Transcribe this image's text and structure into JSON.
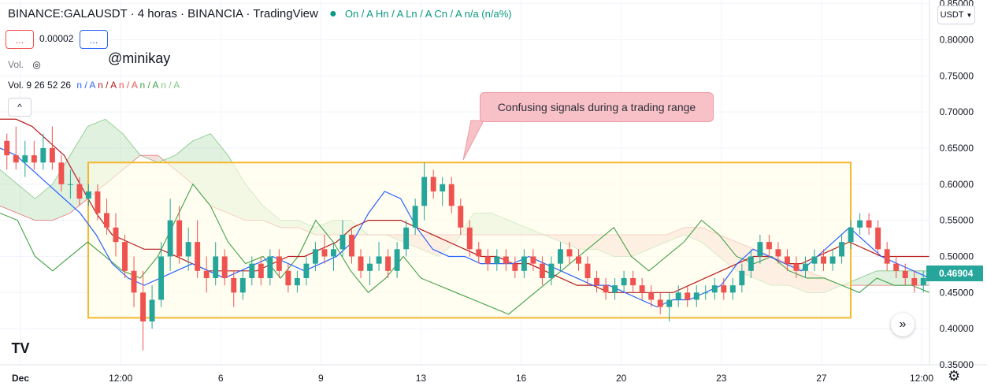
{
  "header": {
    "symbol": "BINANCE:GALAUSDT",
    "interval": "4 horas",
    "exchange": "BINANCIA",
    "provider": "TradingView",
    "ohlc": "On / A  Hn / A  Ln / A  Cn / A  n/a (n/a%)",
    "price_box": "...",
    "step": "0.00002",
    "price_box2": "...",
    "vol_label": "Vol.",
    "vol_params": "Vol. 9 26 52 26",
    "vol_values": [
      "n / A",
      "n / A",
      "n / A",
      "n / A",
      "n / A"
    ],
    "watermark": "@minikay",
    "collapse_glyph": "^"
  },
  "annotation": {
    "text": "Confusing signals during a trading range"
  },
  "price_axis": {
    "currency": "USDT",
    "last_price": "0.46904"
  },
  "colors": {
    "up": "#26a69a",
    "down": "#ef5350",
    "tenkan": "#2962ff",
    "kijun": "#b71c1c",
    "lagging": "#43a047",
    "cloud_bull": "#a5d6a7",
    "cloud_bear": "#ef9a9a",
    "range_box": "#f5b82e",
    "range_fill": "#fffde7"
  },
  "chart_data": {
    "type": "candlestick",
    "y_ticks": [
      "0.35000",
      "0.40000",
      "0.45000",
      "0.50000",
      "0.55000",
      "0.60000",
      "0.65000",
      "0.70000",
      "0.75000",
      "0.80000",
      "0.85000"
    ],
    "ylim": [
      0.35,
      0.855
    ],
    "x_ticks": [
      "Dec",
      "12:00",
      "6",
      "9",
      "13",
      "16",
      "20",
      "23",
      "27",
      "12:00"
    ],
    "range_box": {
      "y_top": 0.63,
      "y_bottom": 0.415
    },
    "candles": [
      [
        0.66,
        0.67,
        0.62,
        0.64
      ],
      [
        0.64,
        0.68,
        0.62,
        0.63
      ],
      [
        0.63,
        0.66,
        0.61,
        0.64
      ],
      [
        0.64,
        0.66,
        0.62,
        0.63
      ],
      [
        0.63,
        0.67,
        0.62,
        0.65
      ],
      [
        0.65,
        0.68,
        0.62,
        0.63
      ],
      [
        0.63,
        0.64,
        0.59,
        0.6
      ],
      [
        0.6,
        0.62,
        0.58,
        0.6
      ],
      [
        0.6,
        0.61,
        0.57,
        0.58
      ],
      [
        0.58,
        0.6,
        0.57,
        0.59
      ],
      [
        0.59,
        0.6,
        0.55,
        0.56
      ],
      [
        0.56,
        0.58,
        0.53,
        0.54
      ],
      [
        0.54,
        0.56,
        0.5,
        0.52
      ],
      [
        0.52,
        0.53,
        0.47,
        0.48
      ],
      [
        0.48,
        0.5,
        0.43,
        0.45
      ],
      [
        0.45,
        0.48,
        0.37,
        0.41
      ],
      [
        0.41,
        0.46,
        0.4,
        0.44
      ],
      [
        0.44,
        0.52,
        0.43,
        0.5
      ],
      [
        0.5,
        0.58,
        0.48,
        0.55
      ],
      [
        0.55,
        0.57,
        0.49,
        0.5
      ],
      [
        0.5,
        0.54,
        0.48,
        0.52
      ],
      [
        0.52,
        0.55,
        0.47,
        0.48
      ],
      [
        0.48,
        0.5,
        0.45,
        0.47
      ],
      [
        0.47,
        0.52,
        0.46,
        0.5
      ],
      [
        0.5,
        0.51,
        0.46,
        0.47
      ],
      [
        0.47,
        0.48,
        0.43,
        0.45
      ],
      [
        0.45,
        0.48,
        0.44,
        0.47
      ],
      [
        0.47,
        0.5,
        0.46,
        0.49
      ],
      [
        0.49,
        0.5,
        0.46,
        0.47
      ],
      [
        0.47,
        0.51,
        0.46,
        0.5
      ],
      [
        0.5,
        0.51,
        0.47,
        0.48
      ],
      [
        0.48,
        0.49,
        0.45,
        0.46
      ],
      [
        0.46,
        0.48,
        0.45,
        0.47
      ],
      [
        0.47,
        0.5,
        0.46,
        0.49
      ],
      [
        0.49,
        0.52,
        0.48,
        0.51
      ],
      [
        0.51,
        0.53,
        0.49,
        0.5
      ],
      [
        0.5,
        0.52,
        0.48,
        0.51
      ],
      [
        0.51,
        0.55,
        0.5,
        0.53
      ],
      [
        0.53,
        0.54,
        0.49,
        0.5
      ],
      [
        0.5,
        0.51,
        0.47,
        0.48
      ],
      [
        0.48,
        0.5,
        0.46,
        0.49
      ],
      [
        0.49,
        0.52,
        0.48,
        0.5
      ],
      [
        0.5,
        0.51,
        0.47,
        0.48
      ],
      [
        0.48,
        0.52,
        0.47,
        0.51
      ],
      [
        0.51,
        0.55,
        0.5,
        0.54
      ],
      [
        0.54,
        0.58,
        0.53,
        0.57
      ],
      [
        0.57,
        0.63,
        0.55,
        0.61
      ],
      [
        0.61,
        0.62,
        0.58,
        0.59
      ],
      [
        0.59,
        0.61,
        0.57,
        0.6
      ],
      [
        0.6,
        0.61,
        0.56,
        0.57
      ],
      [
        0.57,
        0.58,
        0.53,
        0.54
      ],
      [
        0.54,
        0.55,
        0.5,
        0.51
      ],
      [
        0.51,
        0.52,
        0.49,
        0.5
      ],
      [
        0.5,
        0.51,
        0.48,
        0.49
      ],
      [
        0.49,
        0.51,
        0.48,
        0.5
      ],
      [
        0.5,
        0.51,
        0.48,
        0.49
      ],
      [
        0.49,
        0.5,
        0.47,
        0.48
      ],
      [
        0.48,
        0.51,
        0.47,
        0.5
      ],
      [
        0.5,
        0.51,
        0.48,
        0.49
      ],
      [
        0.49,
        0.5,
        0.46,
        0.47
      ],
      [
        0.47,
        0.5,
        0.46,
        0.49
      ],
      [
        0.49,
        0.52,
        0.48,
        0.51
      ],
      [
        0.51,
        0.52,
        0.49,
        0.5
      ],
      [
        0.5,
        0.51,
        0.48,
        0.49
      ],
      [
        0.49,
        0.5,
        0.46,
        0.47
      ],
      [
        0.47,
        0.48,
        0.45,
        0.46
      ],
      [
        0.46,
        0.47,
        0.44,
        0.45
      ],
      [
        0.45,
        0.47,
        0.44,
        0.46
      ],
      [
        0.46,
        0.48,
        0.45,
        0.47
      ],
      [
        0.47,
        0.48,
        0.45,
        0.46
      ],
      [
        0.46,
        0.47,
        0.44,
        0.45
      ],
      [
        0.45,
        0.46,
        0.43,
        0.44
      ],
      [
        0.44,
        0.45,
        0.42,
        0.43
      ],
      [
        0.43,
        0.45,
        0.41,
        0.44
      ],
      [
        0.44,
        0.46,
        0.43,
        0.45
      ],
      [
        0.45,
        0.46,
        0.43,
        0.44
      ],
      [
        0.44,
        0.46,
        0.43,
        0.45
      ],
      [
        0.45,
        0.46,
        0.44,
        0.45
      ],
      [
        0.45,
        0.47,
        0.44,
        0.46
      ],
      [
        0.46,
        0.47,
        0.44,
        0.45
      ],
      [
        0.45,
        0.47,
        0.44,
        0.46
      ],
      [
        0.46,
        0.49,
        0.45,
        0.48
      ],
      [
        0.48,
        0.51,
        0.47,
        0.5
      ],
      [
        0.5,
        0.53,
        0.49,
        0.52
      ],
      [
        0.52,
        0.53,
        0.5,
        0.51
      ],
      [
        0.51,
        0.52,
        0.49,
        0.5
      ],
      [
        0.5,
        0.51,
        0.48,
        0.49
      ],
      [
        0.49,
        0.5,
        0.47,
        0.48
      ],
      [
        0.48,
        0.5,
        0.47,
        0.49
      ],
      [
        0.49,
        0.51,
        0.48,
        0.5
      ],
      [
        0.5,
        0.51,
        0.48,
        0.49
      ],
      [
        0.49,
        0.51,
        0.48,
        0.5
      ],
      [
        0.5,
        0.53,
        0.49,
        0.52
      ],
      [
        0.52,
        0.55,
        0.51,
        0.54
      ],
      [
        0.54,
        0.56,
        0.53,
        0.55
      ],
      [
        0.55,
        0.56,
        0.53,
        0.54
      ],
      [
        0.54,
        0.55,
        0.5,
        0.51
      ],
      [
        0.51,
        0.52,
        0.48,
        0.49
      ],
      [
        0.49,
        0.5,
        0.47,
        0.48
      ],
      [
        0.48,
        0.49,
        0.46,
        0.47
      ],
      [
        0.47,
        0.48,
        0.45,
        0.46
      ],
      [
        0.46,
        0.48,
        0.45,
        0.47
      ]
    ],
    "tenkan": [
      0.65,
      0.64,
      0.62,
      0.6,
      0.58,
      0.56,
      0.53,
      0.49,
      0.47,
      0.46,
      0.47,
      0.48,
      0.49,
      0.48,
      0.47,
      0.48,
      0.49,
      0.5,
      0.49,
      0.48,
      0.49,
      0.5,
      0.52,
      0.56,
      0.59,
      0.58,
      0.54,
      0.51,
      0.5,
      0.5,
      0.49,
      0.49,
      0.49,
      0.5,
      0.49,
      0.48,
      0.47,
      0.46,
      0.46,
      0.45,
      0.44,
      0.43,
      0.44,
      0.44,
      0.45,
      0.46,
      0.49,
      0.51,
      0.5,
      0.49,
      0.48,
      0.5,
      0.52,
      0.54,
      0.52,
      0.5,
      0.49,
      0.48,
      0.47
    ],
    "kijun": [
      0.69,
      0.69,
      0.68,
      0.66,
      0.64,
      0.6,
      0.56,
      0.53,
      0.52,
      0.51,
      0.51,
      0.5,
      0.49,
      0.48,
      0.48,
      0.48,
      0.48,
      0.49,
      0.5,
      0.5,
      0.51,
      0.52,
      0.54,
      0.55,
      0.55,
      0.55,
      0.54,
      0.53,
      0.52,
      0.51,
      0.5,
      0.5,
      0.49,
      0.49,
      0.48,
      0.47,
      0.46,
      0.46,
      0.45,
      0.45,
      0.45,
      0.45,
      0.45,
      0.46,
      0.47,
      0.48,
      0.49,
      0.5,
      0.5,
      0.49,
      0.49,
      0.5,
      0.51,
      0.52,
      0.51,
      0.5,
      0.5,
      0.5,
      0.5
    ],
    "lagging": [
      0.56,
      0.55,
      0.5,
      0.48,
      0.5,
      0.52,
      0.5,
      0.48,
      0.47,
      0.5,
      0.55,
      0.6,
      0.57,
      0.52,
      0.49,
      0.5,
      0.47,
      0.5,
      0.55,
      0.52,
      0.48,
      0.45,
      0.47,
      0.5,
      0.47,
      0.46,
      0.45,
      0.44,
      0.43,
      0.42,
      0.44,
      0.46,
      0.48,
      0.5,
      0.52,
      0.54,
      0.5,
      0.48,
      0.5,
      0.52,
      0.55,
      0.53,
      0.5,
      0.49,
      0.5,
      0.48,
      0.47,
      0.47,
      0.46,
      0.45,
      0.47,
      0.46,
      0.46,
      0.45
    ],
    "span_a": [
      0.62,
      0.6,
      0.58,
      0.6,
      0.64,
      0.68,
      0.69,
      0.67,
      0.64,
      0.63,
      0.64,
      0.66,
      0.67,
      0.64,
      0.6,
      0.57,
      0.55,
      0.55,
      0.54,
      0.55,
      0.55,
      0.53,
      0.53,
      0.52,
      0.51,
      0.5,
      0.52,
      0.56,
      0.56,
      0.55,
      0.54,
      0.53,
      0.52,
      0.51,
      0.51,
      0.5,
      0.5,
      0.51,
      0.52,
      0.53,
      0.52,
      0.5,
      0.48,
      0.47,
      0.46,
      0.46,
      0.45,
      0.45,
      0.46,
      0.47,
      0.48,
      0.48,
      0.48,
      0.48
    ],
    "span_b": [
      0.57,
      0.56,
      0.55,
      0.55,
      0.56,
      0.58,
      0.6,
      0.62,
      0.64,
      0.64,
      0.62,
      0.6,
      0.57,
      0.56,
      0.55,
      0.55,
      0.54,
      0.54,
      0.53,
      0.53,
      0.53,
      0.53,
      0.53,
      0.53,
      0.53,
      0.53,
      0.53,
      0.53,
      0.53,
      0.53,
      0.53,
      0.53,
      0.53,
      0.53,
      0.53,
      0.53,
      0.53,
      0.53,
      0.53,
      0.54,
      0.54,
      0.53,
      0.52,
      0.51,
      0.5,
      0.49,
      0.48,
      0.47,
      0.46,
      0.46,
      0.46,
      0.46,
      0.46,
      0.46
    ]
  }
}
